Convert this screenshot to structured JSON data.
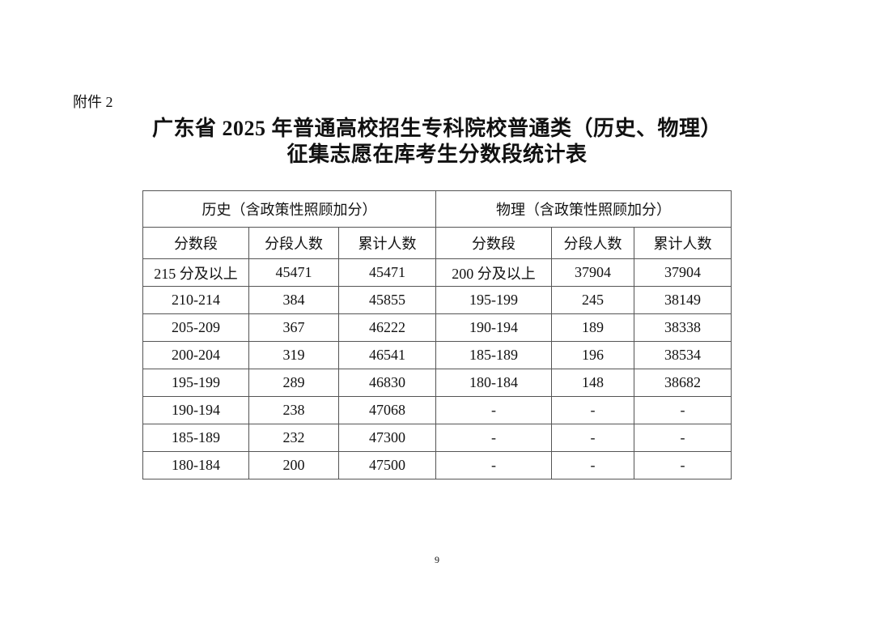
{
  "attachment_label": "附件 2",
  "title_line1": "广东省 2025 年普通高校招生专科院校普通类（历史、物理）",
  "title_line2": "征集志愿在库考生分数段统计表",
  "table": {
    "groups": [
      "历史（含政策性照顾加分）",
      "物理（含政策性照顾加分）"
    ],
    "columns": [
      "分数段",
      "分段人数",
      "累计人数",
      "分数段",
      "分段人数",
      "累计人数"
    ],
    "rows": [
      [
        "215 分及以上",
        "45471",
        "45471",
        "200 分及以上",
        "37904",
        "37904"
      ],
      [
        "210-214",
        "384",
        "45855",
        "195-199",
        "245",
        "38149"
      ],
      [
        "205-209",
        "367",
        "46222",
        "190-194",
        "189",
        "38338"
      ],
      [
        "200-204",
        "319",
        "46541",
        "185-189",
        "196",
        "38534"
      ],
      [
        "195-199",
        "289",
        "46830",
        "180-184",
        "148",
        "38682"
      ],
      [
        "190-194",
        "238",
        "47068",
        "-",
        "-",
        "-"
      ],
      [
        "185-189",
        "232",
        "47300",
        "-",
        "-",
        "-"
      ],
      [
        "180-184",
        "200",
        "47500",
        "-",
        "-",
        "-"
      ]
    ]
  },
  "page_number": "9"
}
